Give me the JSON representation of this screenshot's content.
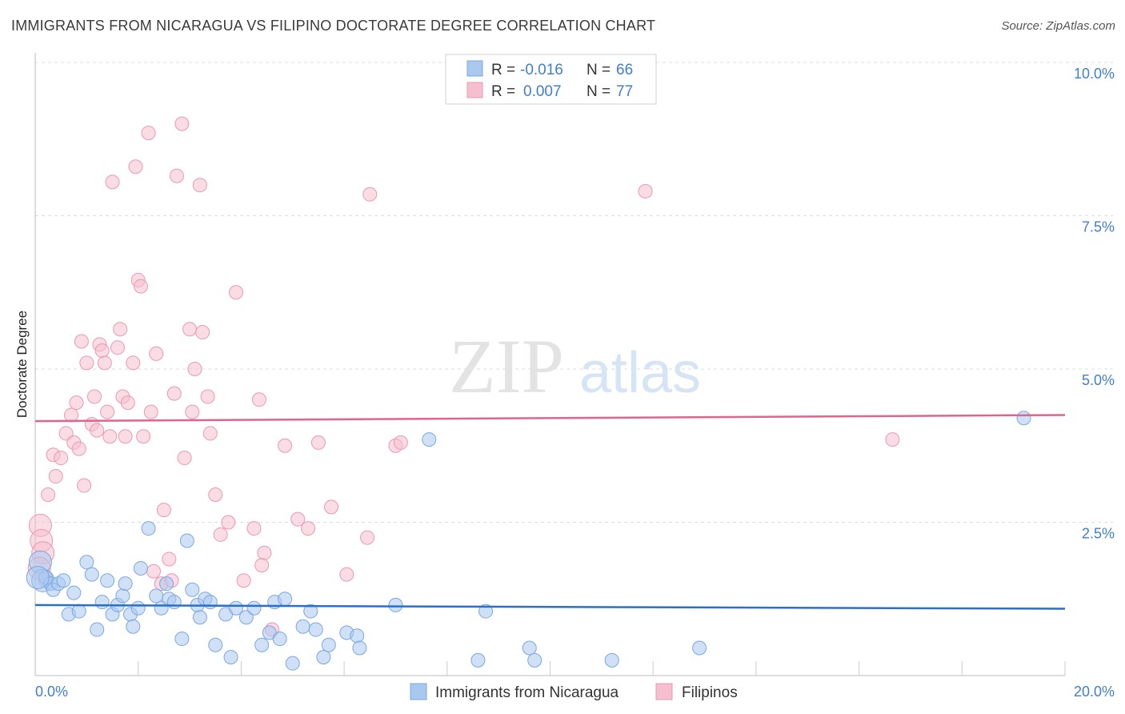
{
  "header": {
    "title": "IMMIGRANTS FROM NICARAGUA VS FILIPINO DOCTORATE DEGREE CORRELATION CHART",
    "source": "Source: ZipAtlas.com"
  },
  "watermark": {
    "zip": "ZIP",
    "atlas": "atlas"
  },
  "legend_box": {
    "rows": [
      {
        "r_label": "R =",
        "r_value": "-0.016",
        "n_label": "N =",
        "n_value": "66"
      },
      {
        "r_label": "R =",
        "r_value": "0.007",
        "n_label": "N =",
        "n_value": "77"
      }
    ]
  },
  "colors": {
    "blue_fill": "#a9c8f0",
    "blue_stroke": "#7aa8e0",
    "blue_line": "#2a6fc9",
    "pink_fill": "#f6bfd0",
    "pink_stroke": "#ec98b3",
    "pink_line": "#e0648f",
    "axis_text": "#3f7fd0",
    "grid": "#dddddd"
  },
  "chart_data": {
    "type": "scatter",
    "title": "IMMIGRANTS FROM NICARAGUA VS FILIPINO DOCTORATE DEGREE CORRELATION CHART",
    "ylabel": "Doctorate Degree",
    "xlim": [
      0,
      20
    ],
    "ylim": [
      0,
      10
    ],
    "x_tick_labels": {
      "min": "0.0%",
      "max": "20.0%"
    },
    "y_ticks": [
      {
        "value": 2.5,
        "label": "2.5%"
      },
      {
        "value": 5.0,
        "label": "5.0%"
      },
      {
        "value": 7.5,
        "label": "7.5%"
      },
      {
        "value": 10.0,
        "label": "10.0%"
      }
    ],
    "grid": true,
    "legend_position": "bottom-center",
    "series": [
      {
        "name": "Immigrants from Nicaragua",
        "r": -0.016,
        "n": 66,
        "trend": {
          "x": [
            0,
            20
          ],
          "y": [
            1.15,
            1.09
          ]
        },
        "points": [
          [
            0.1,
            1.85
          ],
          [
            0.15,
            1.55
          ],
          [
            0.2,
            1.6
          ],
          [
            0.3,
            1.5
          ],
          [
            0.35,
            1.4
          ],
          [
            0.45,
            1.5
          ],
          [
            0.55,
            1.55
          ],
          [
            0.65,
            1.0
          ],
          [
            0.75,
            1.35
          ],
          [
            0.85,
            1.05
          ],
          [
            1.0,
            1.85
          ],
          [
            1.1,
            1.65
          ],
          [
            1.2,
            0.75
          ],
          [
            1.3,
            1.2
          ],
          [
            1.4,
            1.55
          ],
          [
            1.5,
            1.0
          ],
          [
            1.6,
            1.15
          ],
          [
            1.7,
            1.3
          ],
          [
            1.75,
            1.5
          ],
          [
            1.85,
            1.0
          ],
          [
            1.9,
            0.8
          ],
          [
            2.0,
            1.1
          ],
          [
            2.05,
            1.75
          ],
          [
            2.2,
            2.4
          ],
          [
            2.35,
            1.3
          ],
          [
            2.45,
            1.1
          ],
          [
            2.55,
            1.5
          ],
          [
            2.6,
            1.25
          ],
          [
            2.7,
            1.2
          ],
          [
            2.85,
            0.6
          ],
          [
            2.95,
            2.2
          ],
          [
            3.05,
            1.4
          ],
          [
            3.15,
            1.15
          ],
          [
            3.2,
            0.95
          ],
          [
            3.3,
            1.25
          ],
          [
            3.4,
            1.2
          ],
          [
            3.5,
            0.5
          ],
          [
            3.7,
            1.0
          ],
          [
            3.8,
            0.3
          ],
          [
            3.9,
            1.1
          ],
          [
            4.1,
            0.95
          ],
          [
            4.25,
            1.1
          ],
          [
            4.4,
            0.5
          ],
          [
            4.55,
            0.7
          ],
          [
            4.65,
            1.2
          ],
          [
            4.75,
            0.6
          ],
          [
            4.85,
            1.25
          ],
          [
            5.0,
            0.2
          ],
          [
            5.2,
            0.8
          ],
          [
            5.35,
            1.05
          ],
          [
            5.45,
            0.75
          ],
          [
            5.6,
            0.3
          ],
          [
            5.7,
            0.5
          ],
          [
            6.05,
            0.7
          ],
          [
            6.25,
            0.65
          ],
          [
            6.3,
            0.45
          ],
          [
            7.0,
            1.15
          ],
          [
            7.65,
            3.85
          ],
          [
            8.6,
            0.25
          ],
          [
            8.75,
            1.05
          ],
          [
            9.6,
            0.45
          ],
          [
            9.7,
            0.25
          ],
          [
            11.2,
            0.25
          ],
          [
            12.9,
            0.45
          ],
          [
            19.2,
            4.2
          ],
          [
            0.05,
            1.6
          ]
        ]
      },
      {
        "name": "Filipinos",
        "r": 0.007,
        "n": 77,
        "trend": {
          "x": [
            0,
            20
          ],
          "y": [
            4.15,
            4.25
          ]
        },
        "points": [
          [
            0.1,
            2.45
          ],
          [
            0.12,
            2.2
          ],
          [
            0.15,
            2.0
          ],
          [
            0.2,
            1.55
          ],
          [
            0.25,
            2.95
          ],
          [
            0.35,
            3.6
          ],
          [
            0.4,
            3.25
          ],
          [
            0.5,
            3.55
          ],
          [
            0.6,
            3.95
          ],
          [
            0.7,
            4.25
          ],
          [
            0.75,
            3.8
          ],
          [
            0.8,
            4.45
          ],
          [
            0.85,
            3.7
          ],
          [
            0.9,
            5.45
          ],
          [
            0.95,
            3.1
          ],
          [
            1.0,
            5.1
          ],
          [
            1.1,
            4.1
          ],
          [
            1.15,
            4.55
          ],
          [
            1.2,
            4.0
          ],
          [
            1.25,
            5.4
          ],
          [
            1.3,
            5.3
          ],
          [
            1.35,
            5.1
          ],
          [
            1.4,
            4.3
          ],
          [
            1.45,
            3.9
          ],
          [
            1.5,
            8.05
          ],
          [
            1.6,
            5.35
          ],
          [
            1.65,
            5.65
          ],
          [
            1.7,
            4.55
          ],
          [
            1.75,
            3.9
          ],
          [
            1.8,
            4.45
          ],
          [
            1.9,
            5.1
          ],
          [
            1.95,
            8.3
          ],
          [
            2.0,
            6.45
          ],
          [
            2.05,
            6.35
          ],
          [
            2.1,
            3.9
          ],
          [
            2.2,
            8.85
          ],
          [
            2.25,
            4.3
          ],
          [
            2.3,
            1.7
          ],
          [
            2.35,
            5.25
          ],
          [
            2.45,
            1.5
          ],
          [
            2.5,
            2.7
          ],
          [
            2.6,
            1.9
          ],
          [
            2.65,
            1.55
          ],
          [
            2.7,
            4.6
          ],
          [
            2.75,
            8.15
          ],
          [
            2.85,
            9.0
          ],
          [
            2.9,
            3.55
          ],
          [
            3.0,
            5.65
          ],
          [
            3.05,
            4.3
          ],
          [
            3.1,
            5.0
          ],
          [
            3.2,
            8.0
          ],
          [
            3.25,
            5.6
          ],
          [
            3.35,
            4.55
          ],
          [
            3.4,
            3.95
          ],
          [
            3.5,
            2.95
          ],
          [
            3.6,
            2.3
          ],
          [
            3.75,
            2.5
          ],
          [
            3.9,
            6.25
          ],
          [
            4.05,
            1.55
          ],
          [
            4.25,
            2.4
          ],
          [
            4.35,
            4.5
          ],
          [
            4.4,
            1.8
          ],
          [
            4.45,
            2.0
          ],
          [
            4.6,
            0.75
          ],
          [
            4.85,
            3.75
          ],
          [
            5.1,
            2.55
          ],
          [
            5.3,
            2.4
          ],
          [
            5.5,
            3.8
          ],
          [
            5.75,
            2.75
          ],
          [
            6.05,
            1.65
          ],
          [
            6.45,
            2.25
          ],
          [
            6.5,
            7.85
          ],
          [
            7.0,
            3.75
          ],
          [
            7.1,
            3.8
          ],
          [
            11.85,
            7.9
          ],
          [
            16.65,
            3.85
          ],
          [
            0.08,
            1.75
          ]
        ]
      }
    ]
  }
}
